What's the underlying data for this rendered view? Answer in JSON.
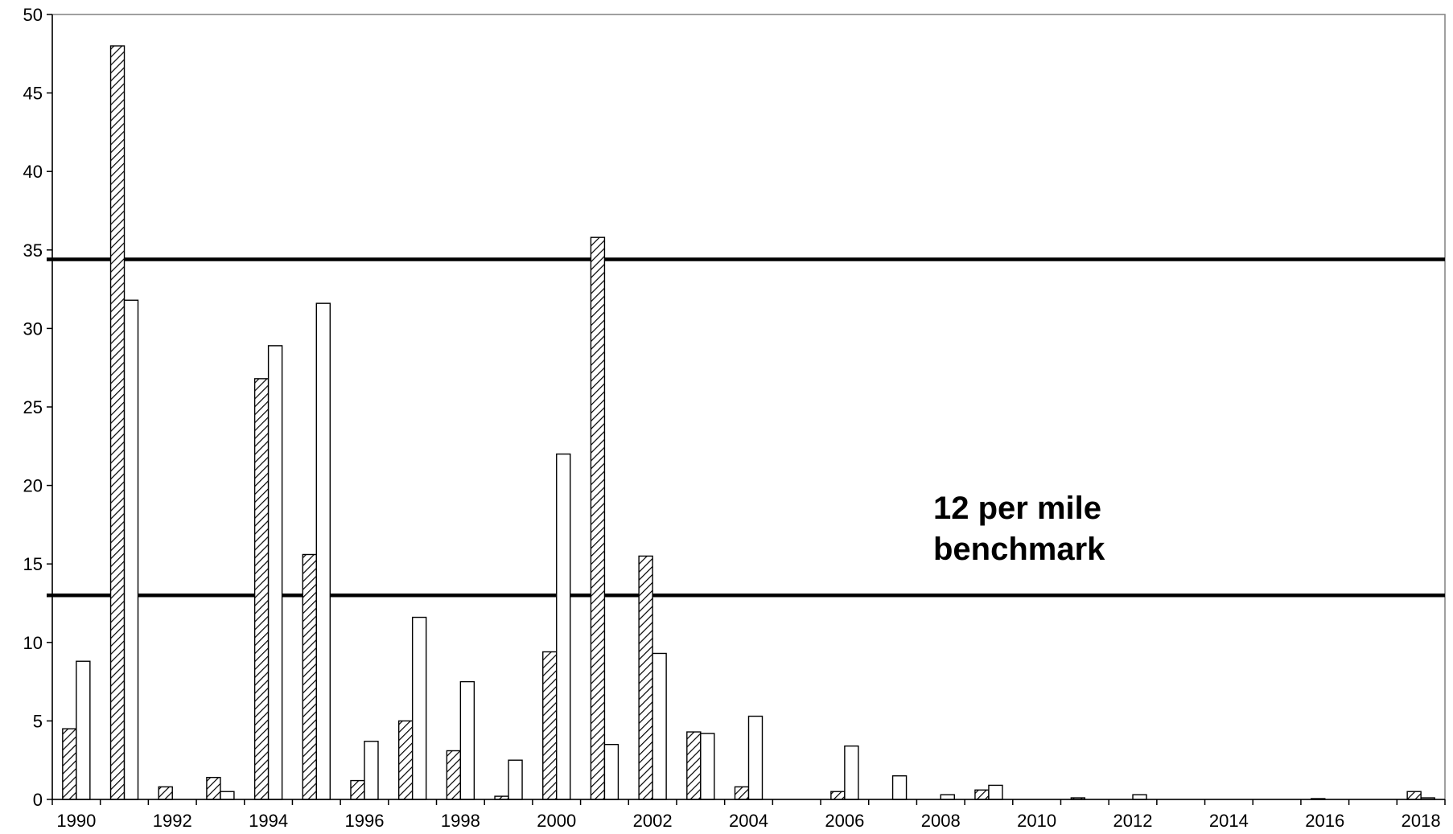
{
  "chart_data": {
    "type": "bar",
    "title": "",
    "xlabel": "",
    "ylabel": "",
    "x": [
      1990,
      1991,
      1992,
      1993,
      1994,
      1995,
      1996,
      1997,
      1998,
      1999,
      2000,
      2001,
      2002,
      2003,
      2004,
      2005,
      2006,
      2007,
      2008,
      2009,
      2010,
      2011,
      2012,
      2013,
      2014,
      2015,
      2016,
      2017,
      2018
    ],
    "x_tick_labels": [
      "1990",
      "1992",
      "1994",
      "1996",
      "1998",
      "2000",
      "2002",
      "2004",
      "2006",
      "2008",
      "2010",
      "2012",
      "2014",
      "2016",
      "2018"
    ],
    "ylim": [
      0,
      50
    ],
    "y_tick_labels": [
      "0",
      "5",
      "10",
      "15",
      "20",
      "25",
      "30",
      "35",
      "40",
      "45",
      "50"
    ],
    "series": [
      {
        "fill": "hatched",
        "values": [
          4.5,
          48,
          0.8,
          1.4,
          26.8,
          15.6,
          1.2,
          5,
          3.1,
          0.2,
          9.4,
          35.8,
          15.5,
          4.3,
          0.8,
          0,
          0.5,
          0,
          0,
          0.6,
          0,
          0.1,
          0,
          0,
          0,
          0,
          0.05,
          0,
          0.5
        ]
      },
      {
        "fill": "white",
        "values": [
          8.8,
          31.8,
          0,
          0.5,
          28.9,
          31.6,
          3.7,
          11.6,
          7.5,
          2.5,
          22,
          3.5,
          9.3,
          4.2,
          5.3,
          0,
          3.4,
          1.5,
          0.3,
          0.9,
          0,
          0,
          0.3,
          0,
          0,
          0,
          0,
          0,
          0.1
        ]
      }
    ],
    "reference_lines": [
      34.4,
      13
    ],
    "annotation": {
      "line1": "12 per mile",
      "line2": "benchmark"
    },
    "grid": false,
    "legend": "none"
  }
}
